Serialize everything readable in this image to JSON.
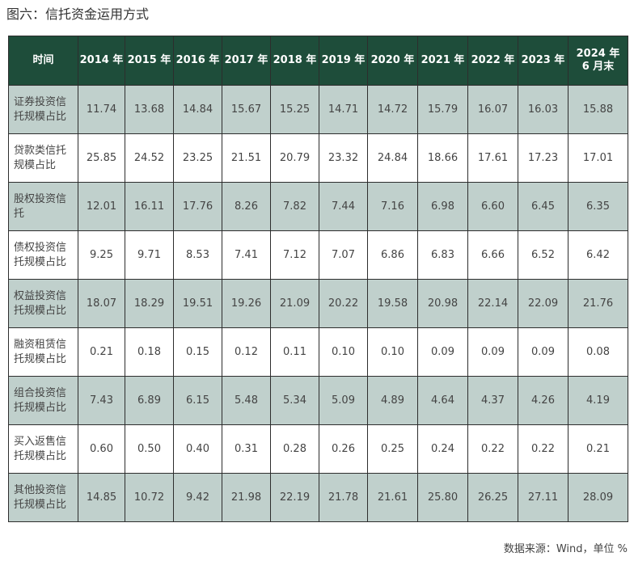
{
  "title": "图六：信托资金运用方式",
  "table": {
    "header": [
      "时间",
      "2014 年",
      "2015 年",
      "2016 年",
      "2017 年",
      "2018 年",
      "2019 年",
      "2020 年",
      "2021 年",
      "2022 年",
      "2023 年",
      "2024 年\n6 月末"
    ],
    "rows": [
      {
        "label": "证券投资信托规模占比",
        "values": [
          "11.74",
          "13.68",
          "14.84",
          "15.67",
          "15.25",
          "14.71",
          "14.72",
          "15.79",
          "16.07",
          "16.03",
          "15.88"
        ]
      },
      {
        "label": "贷款类信托规模占比",
        "values": [
          "25.85",
          "24.52",
          "23.25",
          "21.51",
          "20.79",
          "23.32",
          "24.84",
          "18.66",
          "17.61",
          "17.23",
          "17.01"
        ]
      },
      {
        "label": "股权投资信托",
        "values": [
          "12.01",
          "16.11",
          "17.76",
          "8.26",
          "7.82",
          "7.44",
          "7.16",
          "6.98",
          "6.60",
          "6.45",
          "6.35"
        ]
      },
      {
        "label": "债权投资信托规模占比",
        "values": [
          "9.25",
          "9.71",
          "8.53",
          "7.41",
          "7.12",
          "7.07",
          "6.86",
          "6.83",
          "6.66",
          "6.52",
          "6.42"
        ]
      },
      {
        "label": "权益投资信托规模占比",
        "values": [
          "18.07",
          "18.29",
          "19.51",
          "19.26",
          "21.09",
          "20.22",
          "19.58",
          "20.98",
          "22.14",
          "22.09",
          "21.76"
        ]
      },
      {
        "label": "融资租赁信托规模占比",
        "values": [
          "0.21",
          "0.18",
          "0.15",
          "0.12",
          "0.11",
          "0.10",
          "0.10",
          "0.09",
          "0.09",
          "0.09",
          "0.08"
        ]
      },
      {
        "label": "组合投资信托规模占比",
        "values": [
          "7.43",
          "6.89",
          "6.15",
          "5.48",
          "5.34",
          "5.09",
          "4.89",
          "4.64",
          "4.37",
          "4.26",
          "4.19"
        ]
      },
      {
        "label": "买入返售信托规模占比",
        "values": [
          "0.60",
          "0.50",
          "0.40",
          "0.31",
          "0.28",
          "0.26",
          "0.25",
          "0.24",
          "0.22",
          "0.22",
          "0.21"
        ]
      },
      {
        "label": "其他投资信托规模占比",
        "values": [
          "14.85",
          "10.72",
          "9.42",
          "21.98",
          "22.19",
          "21.78",
          "21.61",
          "25.80",
          "26.25",
          "27.11",
          "28.09"
        ]
      }
    ]
  },
  "source": "数据来源：Wind，单位 %",
  "colors": {
    "header_bg": "#1e4d3a",
    "header_text": "#ffffff",
    "band": "#c0d0cc",
    "border": "#2d2d2d"
  }
}
